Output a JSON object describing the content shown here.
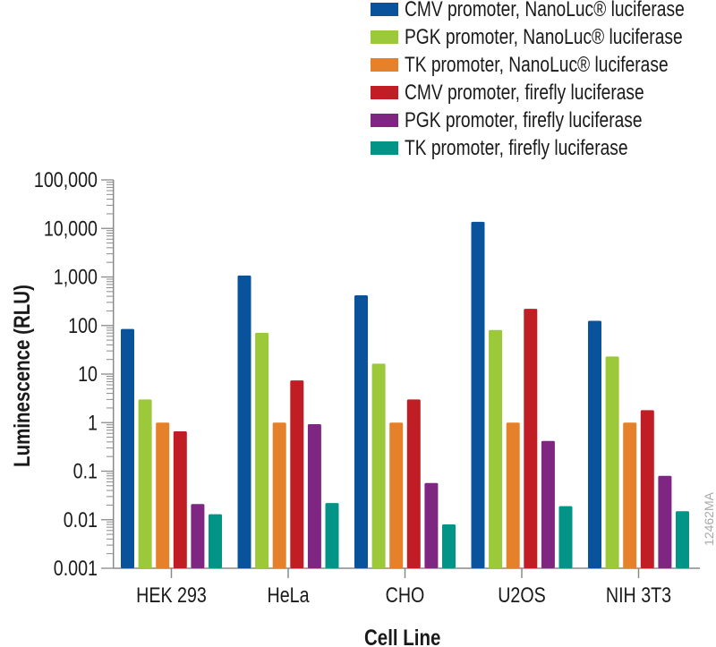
{
  "chart_data": {
    "type": "bar",
    "xlabel": "Cell Line",
    "ylabel": "Luminescence (RLU)",
    "yscale": "log",
    "ylim": [
      0.001,
      100000
    ],
    "ytick_labels": [
      "0.001",
      "0.01",
      "0.1",
      "1",
      "10",
      "100",
      "1,000",
      "10,000",
      "100,000"
    ],
    "categories": [
      "HEK 293",
      "HeLa",
      "CHO",
      "U2OS",
      "NIH 3T3"
    ],
    "legend_position": "top-right",
    "grid": false,
    "series": [
      {
        "name": "CMV promoter, NanoLuc® luciferase",
        "color": "#08539c",
        "values": [
          85,
          1070,
          420,
          13700,
          125
        ]
      },
      {
        "name": "PGK promoter, NanoLuc® luciferase",
        "color": "#9bc93a",
        "values": [
          3.0,
          71,
          16.4,
          81,
          23
        ]
      },
      {
        "name": "TK promoter, NanoLuc® luciferase",
        "color": "#e5812a",
        "values": [
          1,
          1,
          1,
          1,
          1
        ]
      },
      {
        "name": "CMV promoter, firefly luciferase",
        "color": "#c01d24",
        "values": [
          0.66,
          7.4,
          3.0,
          220,
          1.8
        ]
      },
      {
        "name": "PGK promoter, firefly luciferase",
        "color": "#7f2682",
        "values": [
          0.021,
          0.93,
          0.057,
          0.42,
          0.08
        ]
      },
      {
        "name": "TK promoter, firefly luciferase",
        "color": "#039488",
        "values": [
          0.013,
          0.022,
          0.008,
          0.019,
          0.015
        ]
      }
    ],
    "watermark": "12462MA"
  }
}
